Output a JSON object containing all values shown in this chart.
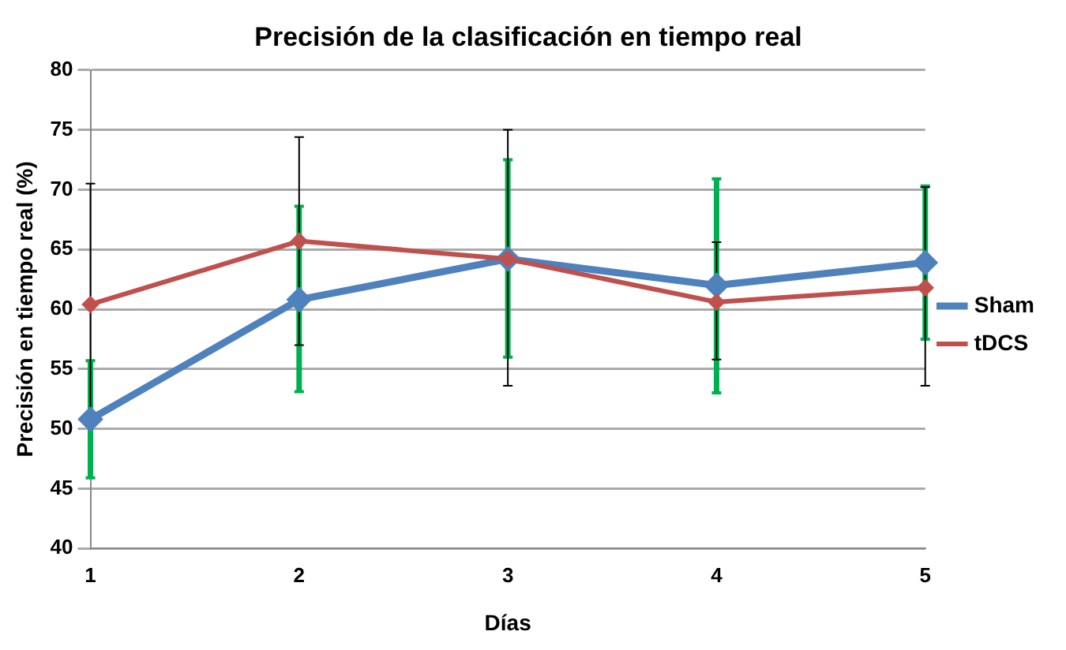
{
  "chart_data": {
    "type": "line",
    "title": "Precisión de la clasificación en tiempo real",
    "xlabel": "Días",
    "ylabel": "Precisión en tiempo real (%)",
    "categories": [
      "1",
      "2",
      "3",
      "4",
      "5"
    ],
    "series": [
      {
        "name": "Sham",
        "color": "#4f81bd",
        "values": [
          50.8,
          60.8,
          64.2,
          62.0,
          63.9
        ],
        "errors": [
          [
            45.9,
            55.7
          ],
          [
            53.1,
            68.6
          ],
          [
            56.0,
            72.5
          ],
          [
            53.0,
            70.9
          ],
          [
            57.5,
            70.3
          ]
        ]
      },
      {
        "name": "tDCS",
        "color": "#c0504d",
        "values": [
          60.4,
          65.7,
          64.2,
          60.6,
          61.8
        ],
        "errors": [
          [
            50.3,
            70.5
          ],
          [
            57.0,
            74.4
          ],
          [
            53.6,
            75.0
          ],
          [
            55.8,
            65.6
          ],
          [
            53.6,
            70.2
          ]
        ]
      }
    ],
    "ylim": [
      40,
      80
    ],
    "yticks": [
      40,
      45,
      50,
      55,
      60,
      65,
      70,
      75,
      80
    ],
    "grid": "y",
    "legend": "right",
    "marker": "diamond",
    "line_style": "solid"
  }
}
